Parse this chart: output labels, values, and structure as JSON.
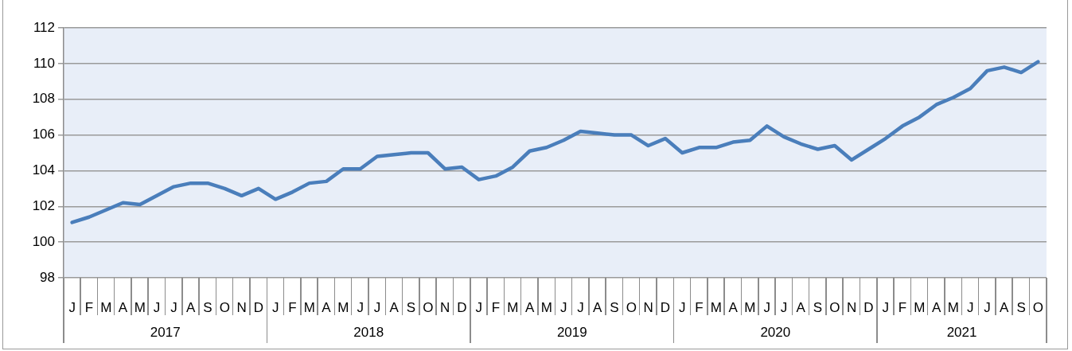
{
  "chart_data": {
    "type": "line",
    "categories": [
      "J",
      "F",
      "M",
      "A",
      "M",
      "J",
      "J",
      "A",
      "S",
      "O",
      "N",
      "D",
      "J",
      "F",
      "M",
      "A",
      "M",
      "J",
      "J",
      "A",
      "S",
      "O",
      "N",
      "D",
      "J",
      "F",
      "M",
      "A",
      "M",
      "J",
      "J",
      "A",
      "S",
      "O",
      "N",
      "D",
      "J",
      "F",
      "M",
      "A",
      "M",
      "J",
      "J",
      "A",
      "S",
      "O",
      "N",
      "D",
      "J",
      "F",
      "M",
      "A",
      "M",
      "J",
      "J",
      "A",
      "S",
      "O"
    ],
    "series": [
      {
        "color": "#4a7ebb",
        "values": [
          101.1,
          101.4,
          101.8,
          102.2,
          102.1,
          102.6,
          103.1,
          103.3,
          103.3,
          103.0,
          102.6,
          103.0,
          102.4,
          102.8,
          103.3,
          103.4,
          104.1,
          104.1,
          104.8,
          104.9,
          105.0,
          105.0,
          104.1,
          104.2,
          103.5,
          103.7,
          104.2,
          105.1,
          105.3,
          105.7,
          106.2,
          106.1,
          106.0,
          106.0,
          105.4,
          105.8,
          105.0,
          105.3,
          105.3,
          105.6,
          105.7,
          106.5,
          105.9,
          105.5,
          105.2,
          105.4,
          104.6,
          105.2,
          105.8,
          106.5,
          107.0,
          107.7,
          108.1,
          108.6,
          109.6,
          109.8,
          109.5,
          110.1
        ]
      }
    ],
    "annotations": [
      "2017",
      "2018",
      "2019",
      "2020",
      "2021"
    ],
    "ylim": [
      98,
      112
    ],
    "yticks": [
      98,
      100,
      102,
      104,
      106,
      108,
      110,
      112
    ],
    "grid": "y",
    "legend": false,
    "marker": "none",
    "line_style": "solid"
  }
}
